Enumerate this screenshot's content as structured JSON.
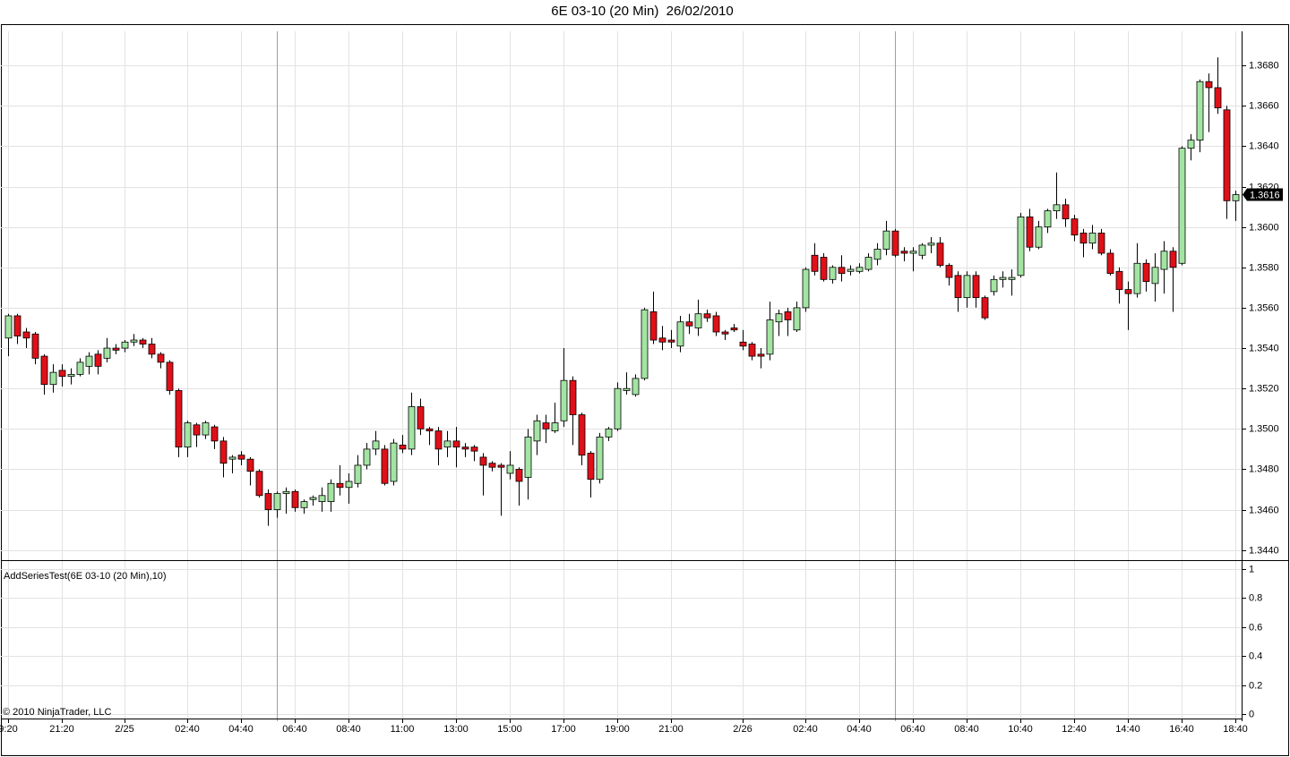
{
  "chart_data": [
    {
      "type": "candlestick",
      "title": "6E 03-10 (20 Min)  26/02/2010",
      "categories": [
        "9:20",
        null,
        null,
        null,
        null,
        null,
        "21:20",
        null,
        null,
        null,
        null,
        null,
        null,
        "2/25",
        null,
        null,
        null,
        null,
        null,
        null,
        "02:40",
        null,
        null,
        null,
        null,
        null,
        "04:40",
        null,
        null,
        null,
        null,
        null,
        "06:40",
        null,
        null,
        null,
        null,
        null,
        "08:40",
        null,
        null,
        null,
        null,
        null,
        "11:00",
        null,
        null,
        null,
        null,
        null,
        "13:00",
        null,
        null,
        null,
        null,
        null,
        "15:00",
        null,
        null,
        null,
        null,
        null,
        "17:00",
        null,
        null,
        null,
        null,
        null,
        "19:00",
        null,
        null,
        null,
        null,
        null,
        "21:00",
        null,
        null,
        null,
        null,
        null,
        null,
        null,
        "2/26",
        null,
        null,
        null,
        null,
        null,
        null,
        "02:40",
        null,
        null,
        null,
        null,
        null,
        "04:40",
        null,
        null,
        null,
        null,
        null,
        "06:40",
        null,
        null,
        null,
        null,
        null,
        "08:40",
        null,
        null,
        null,
        null,
        null,
        "10:40",
        null,
        null,
        null,
        null,
        null,
        "12:40",
        null,
        null,
        null,
        null,
        null,
        "14:40",
        null,
        null,
        null,
        null,
        null,
        "16:40",
        null,
        null,
        null,
        null,
        null,
        "18:40"
      ],
      "open": [
        1.3545,
        1.3556,
        1.3548,
        1.3547,
        1.3536,
        1.3522,
        1.3529,
        1.3526,
        1.3527,
        1.3531,
        1.3537,
        1.3535,
        1.354,
        1.354,
        1.3543,
        1.3544,
        1.3542,
        1.3537,
        1.3533,
        1.3519,
        1.3491,
        1.3502,
        1.3497,
        1.3501,
        1.3494,
        1.3485,
        1.3487,
        1.3485,
        1.3479,
        1.3468,
        1.346,
        1.3468,
        1.3469,
        1.3461,
        1.3465,
        1.3464,
        1.3464,
        1.3473,
        1.3471,
        1.3473,
        1.3482,
        1.349,
        1.349,
        1.3474,
        1.3492,
        1.349,
        1.3511,
        1.35,
        1.3499,
        1.3491,
        1.3494,
        1.3491,
        1.3491,
        1.3486,
        1.3483,
        1.3482,
        1.3478,
        1.348,
        1.3476,
        1.3494,
        1.3503,
        1.3499,
        1.3504,
        1.3524,
        1.3507,
        1.3488,
        1.3475,
        1.3496,
        1.35,
        1.3519,
        1.3517,
        1.3525,
        1.3558,
        1.3545,
        1.3544,
        1.3541,
        1.3553,
        1.355,
        1.3557,
        1.3556,
        1.3548,
        1.355,
        1.3543,
        1.3542,
        1.3537,
        1.3537,
        1.3553,
        1.3558,
        1.3549,
        1.356,
        1.3586,
        1.3585,
        1.3574,
        1.358,
        1.3578,
        1.3578,
        1.3579,
        1.3584,
        1.3589,
        1.3598,
        1.3588,
        1.3587,
        1.3586,
        1.3591,
        1.3592,
        1.3581,
        1.3576,
        1.3565,
        1.3576,
        1.3565,
        1.3568,
        1.3574,
        1.3574,
        1.3576,
        1.3605,
        1.359,
        1.36,
        1.3608,
        1.3611,
        1.3604,
        1.3597,
        1.3592,
        1.3597,
        1.3587,
        1.3578,
        1.3569,
        1.3567,
        1.3582,
        1.3572,
        1.3579,
        1.3588,
        1.3582,
        1.3639,
        1.3643,
        1.3672,
        1.3669,
        1.3658,
        1.3613
      ],
      "high": [
        1.3557,
        1.3557,
        1.355,
        1.3548,
        1.3537,
        1.3532,
        1.3532,
        1.353,
        1.3535,
        1.3538,
        1.3539,
        1.3545,
        1.3542,
        1.3544,
        1.3547,
        1.3545,
        1.3545,
        1.3538,
        1.3534,
        1.352,
        1.3504,
        1.3503,
        1.3504,
        1.3502,
        1.3496,
        1.3487,
        1.3489,
        1.3486,
        1.348,
        1.347,
        1.3469,
        1.3471,
        1.347,
        1.3465,
        1.3467,
        1.3471,
        1.3475,
        1.3482,
        1.3478,
        1.3487,
        1.3493,
        1.3499,
        1.3492,
        1.3495,
        1.3497,
        1.3518,
        1.3515,
        1.3501,
        1.3501,
        1.3499,
        1.3501,
        1.3493,
        1.3492,
        1.3488,
        1.3484,
        1.3483,
        1.3489,
        1.3481,
        1.35,
        1.3507,
        1.3507,
        1.3513,
        1.354,
        1.3526,
        1.3508,
        1.3489,
        1.3498,
        1.3501,
        1.3523,
        1.3528,
        1.3527,
        1.356,
        1.3568,
        1.3551,
        1.3549,
        1.3556,
        1.3557,
        1.3564,
        1.3559,
        1.3558,
        1.3549,
        1.3552,
        1.3549,
        1.3543,
        1.354,
        1.3563,
        1.3559,
        1.356,
        1.3563,
        1.358,
        1.3592,
        1.3587,
        1.3581,
        1.3586,
        1.3581,
        1.3582,
        1.3587,
        1.3592,
        1.3603,
        1.3599,
        1.359,
        1.359,
        1.3592,
        1.3595,
        1.3595,
        1.3582,
        1.3578,
        1.3578,
        1.3578,
        1.3566,
        1.3576,
        1.3578,
        1.3579,
        1.3607,
        1.3609,
        1.3603,
        1.3609,
        1.3627,
        1.3614,
        1.3606,
        1.3599,
        1.3601,
        1.3599,
        1.3589,
        1.358,
        1.3573,
        1.3592,
        1.3584,
        1.3587,
        1.3593,
        1.359,
        1.364,
        1.3646,
        1.3673,
        1.3676,
        1.3684,
        1.366,
        1.3618
      ],
      "low": [
        1.3536,
        1.3542,
        1.354,
        1.3532,
        1.3517,
        1.3518,
        1.3521,
        1.3522,
        1.3526,
        1.3527,
        1.3527,
        1.3533,
        1.3537,
        1.3538,
        1.3541,
        1.354,
        1.3535,
        1.353,
        1.3517,
        1.3486,
        1.3486,
        1.3491,
        1.3495,
        1.349,
        1.3476,
        1.3478,
        1.3482,
        1.3472,
        1.3466,
        1.3452,
        1.3456,
        1.3458,
        1.3459,
        1.3458,
        1.3462,
        1.3459,
        1.3459,
        1.3467,
        1.3463,
        1.3471,
        1.348,
        1.3487,
        1.3472,
        1.3472,
        1.3488,
        1.3487,
        1.3497,
        1.3492,
        1.3482,
        1.3486,
        1.3481,
        1.3486,
        1.3484,
        1.3467,
        1.3479,
        1.3457,
        1.3475,
        1.3462,
        1.3465,
        1.3487,
        1.3493,
        1.3498,
        1.3501,
        1.3492,
        1.3482,
        1.3466,
        1.3473,
        1.3494,
        1.3499,
        1.3517,
        1.3516,
        1.3524,
        1.3542,
        1.3539,
        1.354,
        1.3538,
        1.3547,
        1.3546,
        1.3553,
        1.3546,
        1.3544,
        1.3548,
        1.3539,
        1.3534,
        1.353,
        1.3534,
        1.3546,
        1.3546,
        1.3548,
        1.3558,
        1.3576,
        1.3573,
        1.3572,
        1.3573,
        1.3576,
        1.3577,
        1.3578,
        1.3581,
        1.3586,
        1.3585,
        1.3583,
        1.3578,
        1.3584,
        1.3587,
        1.358,
        1.3571,
        1.3558,
        1.356,
        1.356,
        1.3554,
        1.3566,
        1.357,
        1.3566,
        1.3575,
        1.3588,
        1.3589,
        1.3597,
        1.3604,
        1.36,
        1.3593,
        1.3585,
        1.3589,
        1.3586,
        1.3576,
        1.3562,
        1.3549,
        1.3565,
        1.3568,
        1.3563,
        1.3567,
        1.3558,
        1.3581,
        1.3633,
        1.3637,
        1.3647,
        1.3656,
        1.3604,
        1.3603
      ],
      "close": [
        1.3556,
        1.3546,
        1.3545,
        1.3535,
        1.3522,
        1.3528,
        1.3526,
        1.3527,
        1.3533,
        1.3536,
        1.3531,
        1.354,
        1.3539,
        1.3543,
        1.3544,
        1.3542,
        1.3537,
        1.3533,
        1.3519,
        1.3491,
        1.3503,
        1.3497,
        1.3503,
        1.3494,
        1.3483,
        1.3486,
        1.3485,
        1.3479,
        1.3467,
        1.346,
        1.3468,
        1.3469,
        1.3461,
        1.3464,
        1.3466,
        1.3467,
        1.3473,
        1.3471,
        1.3474,
        1.3482,
        1.349,
        1.3494,
        1.3473,
        1.3493,
        1.349,
        1.3511,
        1.35,
        1.3499,
        1.349,
        1.3494,
        1.3491,
        1.349,
        1.3489,
        1.3482,
        1.3481,
        1.3481,
        1.3482,
        1.3474,
        1.3496,
        1.3504,
        1.35,
        1.3503,
        1.3524,
        1.3507,
        1.3487,
        1.3475,
        1.3496,
        1.35,
        1.352,
        1.352,
        1.3525,
        1.3559,
        1.3544,
        1.3543,
        1.3543,
        1.3553,
        1.3551,
        1.3557,
        1.3555,
        1.3548,
        1.3547,
        1.3549,
        1.3541,
        1.3536,
        1.3536,
        1.3554,
        1.3557,
        1.3554,
        1.356,
        1.3579,
        1.3578,
        1.3574,
        1.358,
        1.3577,
        1.3579,
        1.358,
        1.3585,
        1.3589,
        1.3598,
        1.3586,
        1.3587,
        1.3588,
        1.3591,
        1.3592,
        1.3581,
        1.3575,
        1.3565,
        1.3576,
        1.3565,
        1.3555,
        1.3574,
        1.3575,
        1.3575,
        1.3605,
        1.359,
        1.36,
        1.3608,
        1.3611,
        1.3604,
        1.3596,
        1.3592,
        1.3597,
        1.3587,
        1.3577,
        1.3569,
        1.3567,
        1.3582,
        1.3573,
        1.358,
        1.3588,
        1.358,
        1.3639,
        1.3643,
        1.3672,
        1.3669,
        1.3659,
        1.3613,
        1.3616
      ],
      "up_color": "#a3e4a3",
      "down_color": "#e01018",
      "ylim": [
        1.3435,
        1.37
      ],
      "yticks": [
        {
          "value": 1.344,
          "label": "1.3440"
        },
        {
          "value": 1.346,
          "label": "1.3460"
        },
        {
          "value": 1.348,
          "label": "1.3480"
        },
        {
          "value": 1.35,
          "label": "1.3500"
        },
        {
          "value": 1.352,
          "label": "1.3520"
        },
        {
          "value": 1.354,
          "label": "1.3540"
        },
        {
          "value": 1.356,
          "label": "1.3560"
        },
        {
          "value": 1.358,
          "label": "1.3580"
        },
        {
          "value": 1.36,
          "label": "1.3600"
        },
        {
          "value": 1.362,
          "label": "1.3620"
        },
        {
          "value": 1.364,
          "label": "1.3640"
        },
        {
          "value": 1.366,
          "label": "1.3660"
        },
        {
          "value": 1.368,
          "label": "1.3680"
        }
      ],
      "grid": true
    },
    {
      "type": "line",
      "title": "AddSeriesTest(6E 03-10 (20 Min),10)",
      "ylim": [
        -0.05,
        1.05
      ],
      "yticks": [
        0,
        0.2,
        0.4,
        0.6,
        0.8,
        1
      ],
      "grid": true
    }
  ],
  "copyright": "© 2010 NinjaTrader, LLC"
}
